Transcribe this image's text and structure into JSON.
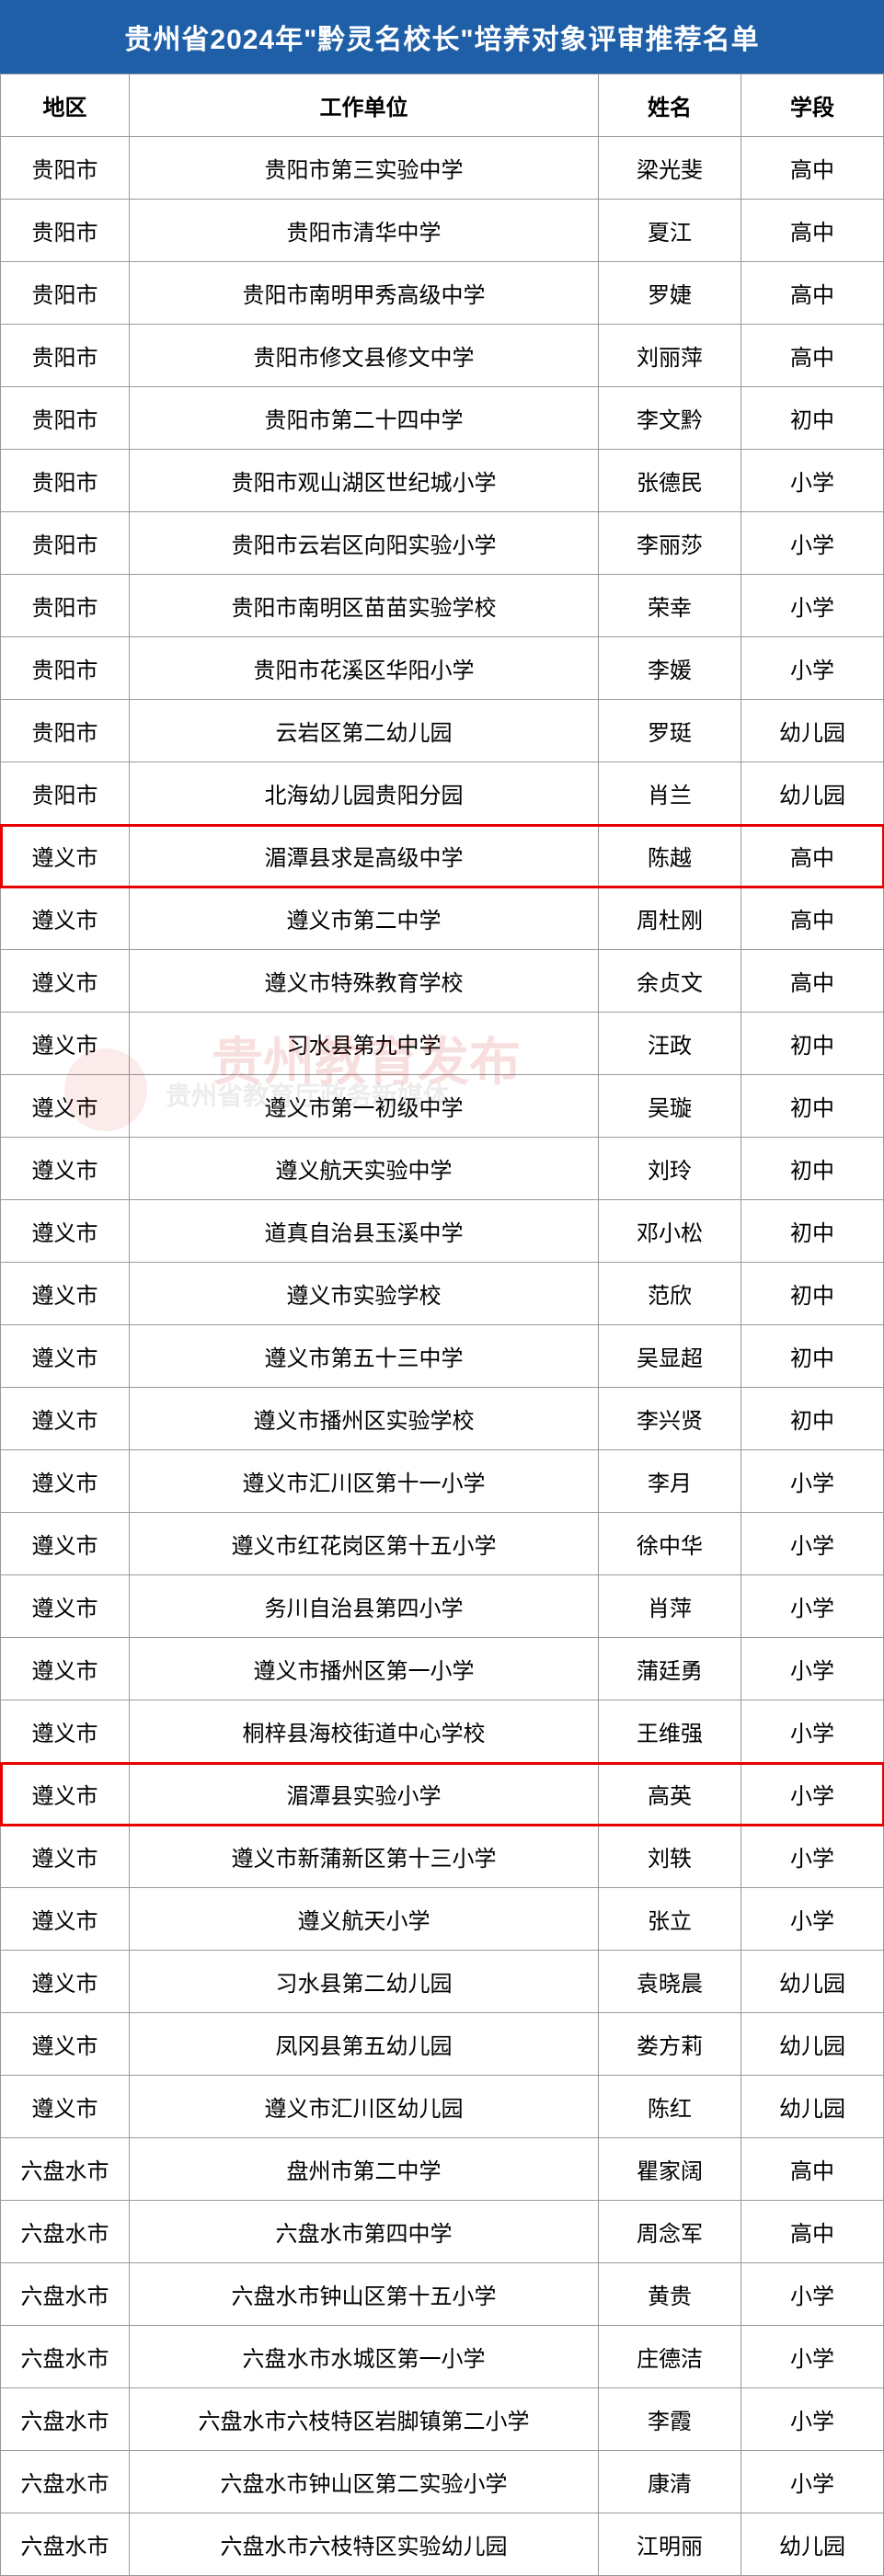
{
  "title": "贵州省2024年\"黔灵名校长\"培养对象评审推荐名单",
  "columns": [
    "地区",
    "工作单位",
    "姓名",
    "学段"
  ],
  "column_widths": [
    "140px",
    "auto",
    "155px",
    "155px"
  ],
  "highlight_color": "#e60000",
  "header_bg": "#1e5fa8",
  "header_text_color": "#ffffff",
  "border_color": "#999999",
  "text_color": "#000000",
  "title_fontsize": 30,
  "cell_fontsize": 24,
  "watermark_main": "贵州教育发布",
  "watermark_sub": "贵州省教育厅政务新媒体",
  "rows": [
    {
      "region": "贵阳市",
      "unit": "贵阳市第三实验中学",
      "name": "梁光斐",
      "stage": "高中",
      "highlight": false
    },
    {
      "region": "贵阳市",
      "unit": "贵阳市清华中学",
      "name": "夏江",
      "stage": "高中",
      "highlight": false
    },
    {
      "region": "贵阳市",
      "unit": "贵阳市南明甲秀高级中学",
      "name": "罗婕",
      "stage": "高中",
      "highlight": false
    },
    {
      "region": "贵阳市",
      "unit": "贵阳市修文县修文中学",
      "name": "刘丽萍",
      "stage": "高中",
      "highlight": false
    },
    {
      "region": "贵阳市",
      "unit": "贵阳市第二十四中学",
      "name": "李文黔",
      "stage": "初中",
      "highlight": false
    },
    {
      "region": "贵阳市",
      "unit": "贵阳市观山湖区世纪城小学",
      "name": "张德民",
      "stage": "小学",
      "highlight": false
    },
    {
      "region": "贵阳市",
      "unit": "贵阳市云岩区向阳实验小学",
      "name": "李丽莎",
      "stage": "小学",
      "highlight": false
    },
    {
      "region": "贵阳市",
      "unit": "贵阳市南明区苗苗实验学校",
      "name": "荣幸",
      "stage": "小学",
      "highlight": false
    },
    {
      "region": "贵阳市",
      "unit": "贵阳市花溪区华阳小学",
      "name": "李媛",
      "stage": "小学",
      "highlight": false
    },
    {
      "region": "贵阳市",
      "unit": "云岩区第二幼儿园",
      "name": "罗珽",
      "stage": "幼儿园",
      "highlight": false
    },
    {
      "region": "贵阳市",
      "unit": "北海幼儿园贵阳分园",
      "name": "肖兰",
      "stage": "幼儿园",
      "highlight": false
    },
    {
      "region": "遵义市",
      "unit": "湄潭县求是高级中学",
      "name": "陈越",
      "stage": "高中",
      "highlight": true
    },
    {
      "region": "遵义市",
      "unit": "遵义市第二中学",
      "name": "周杜刚",
      "stage": "高中",
      "highlight": false
    },
    {
      "region": "遵义市",
      "unit": "遵义市特殊教育学校",
      "name": "余贞文",
      "stage": "高中",
      "highlight": false
    },
    {
      "region": "遵义市",
      "unit": "习水县第九中学",
      "name": "汪政",
      "stage": "初中",
      "highlight": false
    },
    {
      "region": "遵义市",
      "unit": "遵义市第一初级中学",
      "name": "吴璇",
      "stage": "初中",
      "highlight": false
    },
    {
      "region": "遵义市",
      "unit": "遵义航天实验中学",
      "name": "刘玲",
      "stage": "初中",
      "highlight": false
    },
    {
      "region": "遵义市",
      "unit": "道真自治县玉溪中学",
      "name": "邓小松",
      "stage": "初中",
      "highlight": false
    },
    {
      "region": "遵义市",
      "unit": "遵义市实验学校",
      "name": "范欣",
      "stage": "初中",
      "highlight": false
    },
    {
      "region": "遵义市",
      "unit": "遵义市第五十三中学",
      "name": "吴显超",
      "stage": "初中",
      "highlight": false
    },
    {
      "region": "遵义市",
      "unit": "遵义市播州区实验学校",
      "name": "李兴贤",
      "stage": "初中",
      "highlight": false
    },
    {
      "region": "遵义市",
      "unit": "遵义市汇川区第十一小学",
      "name": "李月",
      "stage": "小学",
      "highlight": false
    },
    {
      "region": "遵义市",
      "unit": "遵义市红花岗区第十五小学",
      "name": "徐中华",
      "stage": "小学",
      "highlight": false
    },
    {
      "region": "遵义市",
      "unit": "务川自治县第四小学",
      "name": "肖萍",
      "stage": "小学",
      "highlight": false
    },
    {
      "region": "遵义市",
      "unit": "遵义市播州区第一小学",
      "name": "蒲廷勇",
      "stage": "小学",
      "highlight": false
    },
    {
      "region": "遵义市",
      "unit": "桐梓县海校街道中心学校",
      "name": "王维强",
      "stage": "小学",
      "highlight": false
    },
    {
      "region": "遵义市",
      "unit": "湄潭县实验小学",
      "name": "高英",
      "stage": "小学",
      "highlight": true
    },
    {
      "region": "遵义市",
      "unit": "遵义市新蒲新区第十三小学",
      "name": "刘轶",
      "stage": "小学",
      "highlight": false
    },
    {
      "region": "遵义市",
      "unit": "遵义航天小学",
      "name": "张立",
      "stage": "小学",
      "highlight": false
    },
    {
      "region": "遵义市",
      "unit": "习水县第二幼儿园",
      "name": "袁晓晨",
      "stage": "幼儿园",
      "highlight": false
    },
    {
      "region": "遵义市",
      "unit": "凤冈县第五幼儿园",
      "name": "娄方莉",
      "stage": "幼儿园",
      "highlight": false
    },
    {
      "region": "遵义市",
      "unit": "遵义市汇川区幼儿园",
      "name": "陈红",
      "stage": "幼儿园",
      "highlight": false
    },
    {
      "region": "六盘水市",
      "unit": "盘州市第二中学",
      "name": "瞿家阔",
      "stage": "高中",
      "highlight": false
    },
    {
      "region": "六盘水市",
      "unit": "六盘水市第四中学",
      "name": "周念军",
      "stage": "高中",
      "highlight": false
    },
    {
      "region": "六盘水市",
      "unit": "六盘水市钟山区第十五小学",
      "name": "黄贵",
      "stage": "小学",
      "highlight": false
    },
    {
      "region": "六盘水市",
      "unit": "六盘水市水城区第一小学",
      "name": "庄德洁",
      "stage": "小学",
      "highlight": false
    },
    {
      "region": "六盘水市",
      "unit": "六盘水市六枝特区岩脚镇第二小学",
      "name": "李霞",
      "stage": "小学",
      "highlight": false
    },
    {
      "region": "六盘水市",
      "unit": "六盘水市钟山区第二实验小学",
      "name": "康清",
      "stage": "小学",
      "highlight": false
    },
    {
      "region": "六盘水市",
      "unit": "六盘水市六枝特区实验幼儿园",
      "name": "江明丽",
      "stage": "幼儿园",
      "highlight": false
    }
  ]
}
